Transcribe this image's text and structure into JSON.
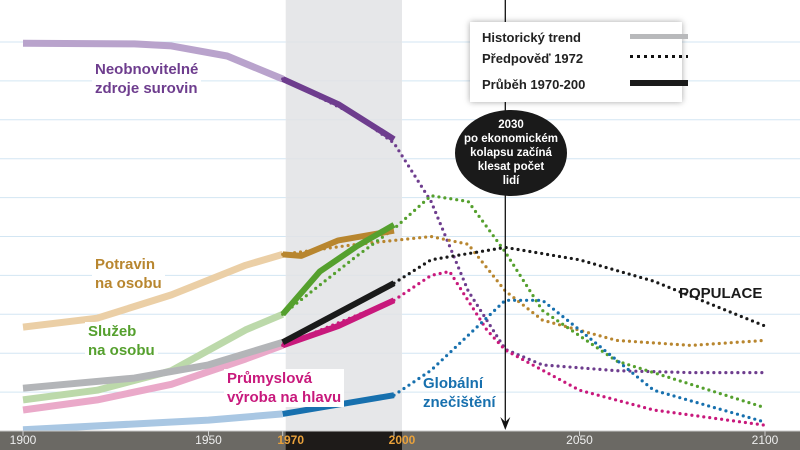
{
  "chart_data": {
    "type": "line",
    "title": "",
    "xlabel": "",
    "ylabel": "",
    "xlim": [
      1900,
      2100
    ],
    "ylim": [
      0,
      10
    ],
    "grid": true,
    "x_ticks": [
      {
        "value": 1900,
        "label": "1900",
        "highlight": false
      },
      {
        "value": 1950,
        "label": "1950",
        "highlight": false
      },
      {
        "value": 1970,
        "label": "1970",
        "highlight": true
      },
      {
        "value": 2000,
        "label": "2000",
        "highlight": true
      },
      {
        "value": 2050,
        "label": "2050",
        "highlight": false
      },
      {
        "value": 2100,
        "label": "2100",
        "highlight": false
      }
    ],
    "shaded_period": [
      1970,
      2000
    ],
    "marker_year": 2030,
    "legend": {
      "placement": "top-right",
      "entries": [
        {
          "label": "Historický trend",
          "style": "solid-light"
        },
        {
          "label": "Předpověď 1972",
          "style": "dotted"
        },
        {
          "label": "Průběh 1970-200",
          "style": "solid-thick"
        }
      ]
    },
    "annotation": {
      "lines": [
        "2030",
        "po ekonomickém",
        "kolapsu začíná",
        "klesat počet",
        "lidí"
      ]
    },
    "series": [
      {
        "name": "Neobnovitelné zdroje surovin",
        "label_lines": [
          "Neobnovitelné",
          "zdroje surovin"
        ],
        "color": "#6e3d8e",
        "hist_color": "#b9a3cc",
        "historic": [
          [
            1900,
            9.97
          ],
          [
            1930,
            9.95
          ],
          [
            1940,
            9.9
          ],
          [
            1955,
            9.64
          ],
          [
            1970,
            9.05
          ]
        ],
        "observed": [
          [
            1970,
            9.05
          ],
          [
            1985,
            8.4
          ],
          [
            2000,
            7.5
          ]
        ],
        "forecast": [
          [
            1970,
            9.05
          ],
          [
            1990,
            8.1
          ],
          [
            2000,
            7.4
          ],
          [
            2010,
            5.9
          ],
          [
            2020,
            3.6
          ],
          [
            2030,
            2.1
          ],
          [
            2040,
            1.7
          ],
          [
            2060,
            1.55
          ],
          [
            2080,
            1.5
          ],
          [
            2100,
            1.5
          ]
        ]
      },
      {
        "name": "Potravin na osobu",
        "label_lines": [
          "Potravin",
          "na osobu"
        ],
        "color": "#b8862f",
        "hist_color": "#ebcfa6",
        "historic": [
          [
            1900,
            2.67
          ],
          [
            1920,
            2.9
          ],
          [
            1940,
            3.5
          ],
          [
            1960,
            4.26
          ],
          [
            1970,
            4.54
          ]
        ],
        "observed": [
          [
            1970,
            4.54
          ],
          [
            1975,
            4.5
          ],
          [
            1985,
            4.9
          ],
          [
            2000,
            5.15
          ]
        ],
        "forecast": [
          [
            1970,
            4.54
          ],
          [
            1990,
            4.8
          ],
          [
            2000,
            4.9
          ],
          [
            2010,
            5.0
          ],
          [
            2020,
            4.8
          ],
          [
            2030,
            3.6
          ],
          [
            2040,
            2.85
          ],
          [
            2060,
            2.33
          ],
          [
            2080,
            2.2
          ],
          [
            2100,
            2.33
          ]
        ]
      },
      {
        "name": "Služeb na osobu",
        "label_lines": [
          "Služeb",
          "na osobu"
        ],
        "color": "#55a02e",
        "hist_color": "#bcd9aa",
        "historic": [
          [
            1900,
            0.8
          ],
          [
            1920,
            1.05
          ],
          [
            1940,
            1.55
          ],
          [
            1960,
            2.6
          ],
          [
            1970,
            3.0
          ]
        ],
        "observed": [
          [
            1970,
            3.0
          ],
          [
            1980,
            4.1
          ],
          [
            1990,
            4.75
          ],
          [
            2000,
            5.3
          ]
        ],
        "forecast": [
          [
            1970,
            3.0
          ],
          [
            1990,
            4.5
          ],
          [
            2000,
            5.2
          ],
          [
            2010,
            6.05
          ],
          [
            2020,
            5.9
          ],
          [
            2030,
            4.6
          ],
          [
            2040,
            3.1
          ],
          [
            2060,
            1.8
          ],
          [
            2080,
            1.2
          ],
          [
            2100,
            0.6
          ]
        ]
      },
      {
        "name": "Průmyslová výroba na hlavu",
        "label_lines": [
          "Průmyslová",
          "výroba na hlavu"
        ],
        "color": "#c8197c",
        "hist_color": "#eaa9c9",
        "historic": [
          [
            1900,
            0.54
          ],
          [
            1920,
            0.8
          ],
          [
            1940,
            1.2
          ],
          [
            1960,
            1.85
          ],
          [
            1970,
            2.2
          ]
        ],
        "observed": [
          [
            1970,
            2.2
          ],
          [
            1985,
            2.7
          ],
          [
            2000,
            3.36
          ]
        ],
        "forecast": [
          [
            1970,
            2.2
          ],
          [
            2000,
            3.36
          ],
          [
            2010,
            4.0
          ],
          [
            2015,
            4.1
          ],
          [
            2025,
            2.6
          ],
          [
            2030,
            2.08
          ],
          [
            2050,
            1.05
          ],
          [
            2070,
            0.54
          ],
          [
            2100,
            0.15
          ]
        ]
      },
      {
        "name": "POPULACE",
        "label_lines": [
          "POPULACE"
        ],
        "color": "#1a1a1a",
        "hist_color": "#b3b5b8",
        "historic": [
          [
            1900,
            1.1
          ],
          [
            1930,
            1.36
          ],
          [
            1950,
            1.7
          ],
          [
            1970,
            2.28
          ]
        ],
        "observed": [
          [
            1970,
            2.28
          ],
          [
            2000,
            3.8
          ]
        ],
        "forecast": [
          [
            2000,
            3.8
          ],
          [
            2010,
            4.4
          ],
          [
            2030,
            4.72
          ],
          [
            2050,
            4.4
          ],
          [
            2070,
            3.85
          ],
          [
            2100,
            2.7
          ]
        ]
      },
      {
        "name": "Globální znečištění",
        "label_lines": [
          "Globální",
          "znečištění"
        ],
        "color": "#1770ae",
        "hist_color": "#a9c7e3",
        "historic": [
          [
            1900,
            0.03
          ],
          [
            1950,
            0.28
          ],
          [
            1970,
            0.44
          ]
        ],
        "observed": [
          [
            1970,
            0.44
          ],
          [
            2000,
            0.92
          ]
        ],
        "forecast": [
          [
            2000,
            0.92
          ],
          [
            2010,
            1.56
          ],
          [
            2030,
            3.36
          ],
          [
            2040,
            3.36
          ],
          [
            2050,
            2.6
          ],
          [
            2070,
            1.05
          ],
          [
            2100,
            0.23
          ]
        ]
      }
    ]
  }
}
